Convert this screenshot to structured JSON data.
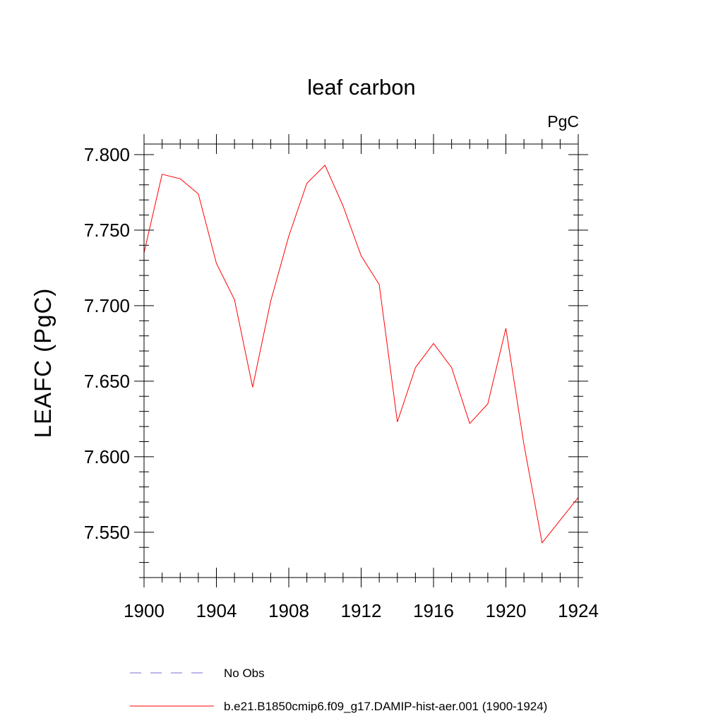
{
  "chart_data": {
    "type": "line",
    "title": "leaf carbon",
    "units_label": "PgC",
    "ylabel": "LEAFC  (PgC)",
    "xlabel": "",
    "xlim": [
      1900,
      1924
    ],
    "ylim": [
      7.52,
      7.807
    ],
    "x_ticks": [
      1900,
      1904,
      1908,
      1912,
      1916,
      1920,
      1924
    ],
    "x_tick_labels": [
      "1900",
      "1904",
      "1908",
      "1912",
      "1916",
      "1920",
      "1924"
    ],
    "y_ticks": [
      7.55,
      7.6,
      7.65,
      7.7,
      7.75,
      7.8
    ],
    "y_tick_labels": [
      "7.550",
      "7.600",
      "7.650",
      "7.700",
      "7.750",
      "7.800"
    ],
    "grid": false,
    "legend_position": "bottom",
    "series": [
      {
        "name": "b.e21.B1850cmip6.f09_g17.DAMIP-hist-aer.001 (1900-1924)",
        "color": "#ff0000",
        "dash": "solid",
        "x": [
          1900,
          1901,
          1902,
          1903,
          1904,
          1905,
          1906,
          1907,
          1908,
          1909,
          1910,
          1911,
          1912,
          1913,
          1914,
          1915,
          1916,
          1917,
          1918,
          1919,
          1920,
          1921,
          1922,
          1923,
          1924
        ],
        "y": [
          7.735,
          7.787,
          7.784,
          7.774,
          7.728,
          7.704,
          7.646,
          7.703,
          7.746,
          7.781,
          7.793,
          7.766,
          7.733,
          7.714,
          7.623,
          7.659,
          7.675,
          7.659,
          7.622,
          7.635,
          7.685,
          7.608,
          7.543,
          7.558,
          7.573
        ]
      }
    ],
    "legend": [
      {
        "label": "No Obs",
        "color": "#7b6fd0",
        "dash": "dashed"
      },
      {
        "label": "b.e21.B1850cmip6.f09_g17.DAMIP-hist-aer.001 (1900-1924)",
        "color": "#ff0000",
        "dash": "solid"
      }
    ]
  }
}
